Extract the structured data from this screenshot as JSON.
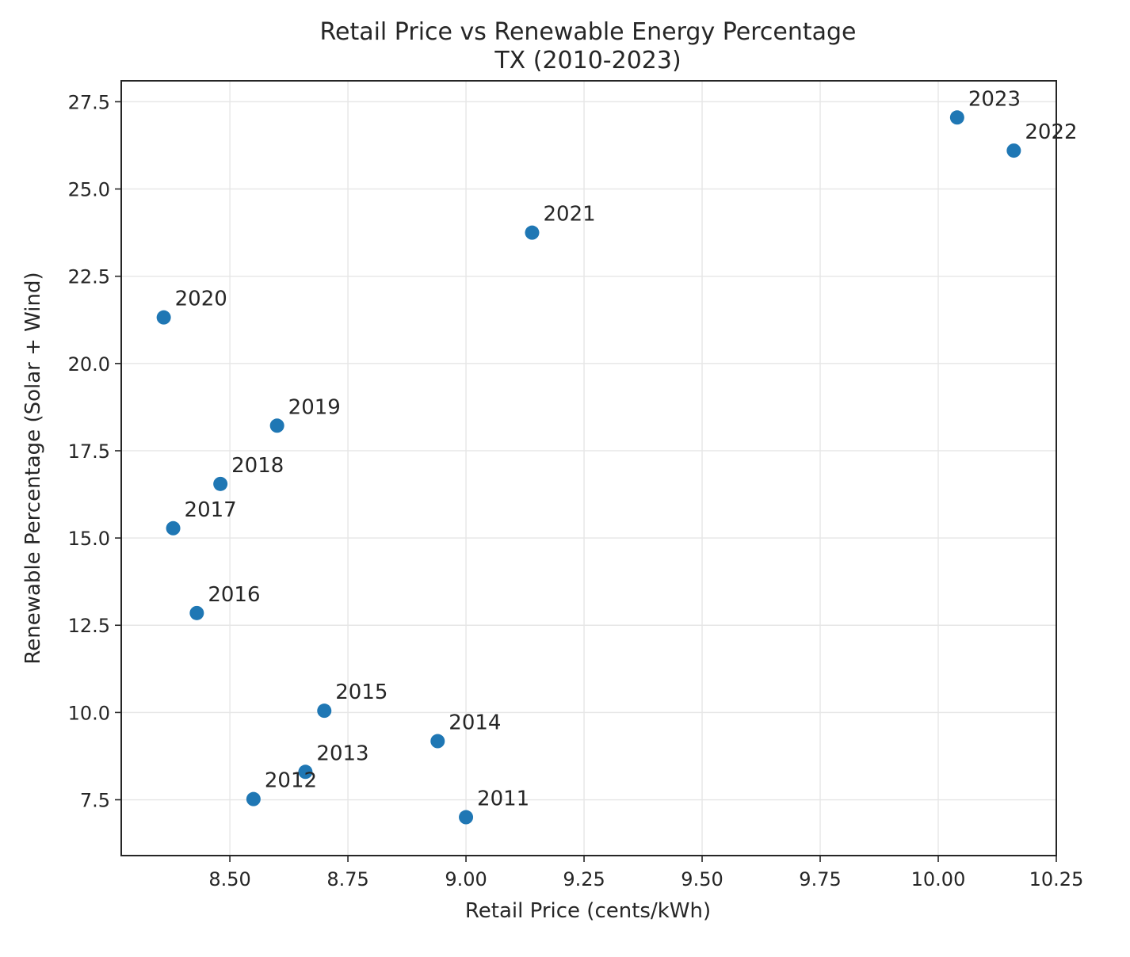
{
  "chart_data": {
    "type": "scatter",
    "title": "Retail Price vs Renewable Energy Percentage",
    "subtitle": "TX (2010-2023)",
    "xlabel": "Retail Price (cents/kWh)",
    "ylabel": "Renewable Percentage (Solar + Wind)",
    "xlim": [
      8.27,
      10.25
    ],
    "ylim": [
      5.9,
      28.1
    ],
    "x_ticks": [
      8.5,
      8.75,
      9.0,
      9.25,
      9.5,
      9.75,
      10.0,
      10.25
    ],
    "x_tick_labels": [
      "8.50",
      "8.75",
      "9.00",
      "9.25",
      "9.50",
      "9.75",
      "10.00",
      "10.25"
    ],
    "y_ticks": [
      7.5,
      10.0,
      12.5,
      15.0,
      17.5,
      20.0,
      22.5,
      25.0,
      27.5
    ],
    "y_tick_labels": [
      "7.5",
      "10.0",
      "12.5",
      "15.0",
      "17.5",
      "20.0",
      "22.5",
      "25.0",
      "27.5"
    ],
    "grid": true,
    "marker_color": "#1f77b4",
    "points": [
      {
        "label": "2011",
        "x": 9.0,
        "y": 7.0
      },
      {
        "label": "2012",
        "x": 8.55,
        "y": 7.52
      },
      {
        "label": "2013",
        "x": 8.66,
        "y": 8.3
      },
      {
        "label": "2014",
        "x": 8.94,
        "y": 9.18
      },
      {
        "label": "2015",
        "x": 8.7,
        "y": 10.05
      },
      {
        "label": "2016",
        "x": 8.43,
        "y": 12.85
      },
      {
        "label": "2017",
        "x": 8.38,
        "y": 15.28
      },
      {
        "label": "2018",
        "x": 8.48,
        "y": 16.55
      },
      {
        "label": "2019",
        "x": 8.6,
        "y": 18.22
      },
      {
        "label": "2020",
        "x": 8.36,
        "y": 21.32
      },
      {
        "label": "2021",
        "x": 9.14,
        "y": 23.75
      },
      {
        "label": "2022",
        "x": 10.16,
        "y": 26.1
      },
      {
        "label": "2023",
        "x": 10.04,
        "y": 27.05
      }
    ]
  }
}
